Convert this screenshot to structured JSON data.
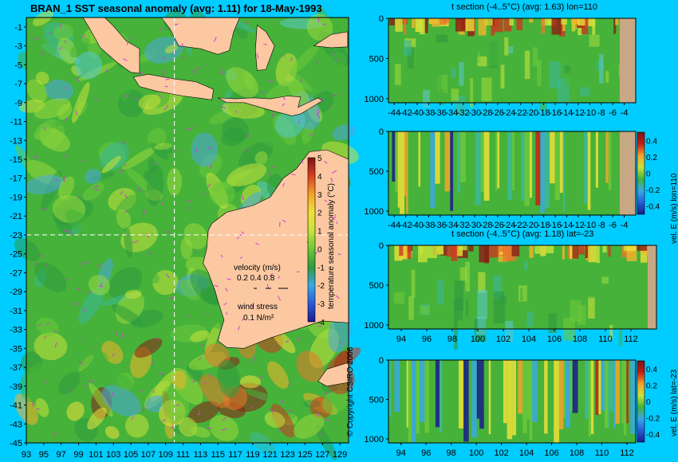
{
  "chart_data": [
    {
      "type": "heatmap",
      "title": "BRAN_1 SST seasonal anomaly (avg: 1.11) for 18-May-1993",
      "x_ticks": [
        "93",
        "95",
        "97",
        "99",
        "101",
        "103",
        "105",
        "107",
        "109",
        "111",
        "113",
        "115",
        "117",
        "119",
        "121",
        "123",
        "125",
        "127",
        "129"
      ],
      "y_ticks": [
        "-1",
        "-3",
        "-5",
        "-7",
        "-9",
        "-11",
        "-13",
        "-15",
        "-17",
        "-19",
        "-21",
        "-23",
        "-25",
        "-27",
        "-29",
        "-31",
        "-33",
        "-35",
        "-37",
        "-39",
        "-41",
        "-43",
        "-45"
      ],
      "xlim": [
        93,
        130
      ],
      "ylim": [
        -45,
        0
      ],
      "crosshair": {
        "lon": 110,
        "lat": -23
      },
      "colorbar": {
        "label": "temperature seasonal anomaly (°C)",
        "ticks": [
          "5",
          "4",
          "3",
          "2",
          "1",
          "0",
          "-1",
          "-2",
          "-3",
          "-4"
        ],
        "range": [
          -4,
          5
        ]
      },
      "legend": {
        "velocity_title": "velocity (m/s)",
        "velocity_values": "0.2 0.4 0.8",
        "wind_title": "wind stress",
        "wind_value": "0.1 N/m²"
      },
      "copyright": "© Copyright CSIRO 2006"
    },
    {
      "type": "heatmap",
      "title": "t section (-4..5°C) (avg: 1.63) lon=110",
      "x_ticks": [
        "-44",
        "-42",
        "-40",
        "-38",
        "-36",
        "-34",
        "-32",
        "-30",
        "-28",
        "-26",
        "-24",
        "-22",
        "-20",
        "-18",
        "-16",
        "-14",
        "-12",
        "-10",
        "-8",
        "-6",
        "-4"
      ],
      "y_ticks": [
        "0",
        "500",
        "1000"
      ]
    },
    {
      "type": "heatmap",
      "title": "",
      "x_ticks": [
        "-44",
        "-42",
        "-40",
        "-38",
        "-36",
        "-34",
        "-32",
        "-30",
        "-28",
        "-26",
        "-24",
        "-22",
        "-20",
        "-18",
        "-16",
        "-14",
        "-12",
        "-10",
        "-8",
        "-6",
        "-4"
      ],
      "y_ticks": [
        "0",
        "500",
        "1000"
      ],
      "colorbar": {
        "label": "vel. E (m/s) lon=110",
        "ticks": [
          "0.4",
          "0.2",
          "0",
          "-0.2",
          "-0.4"
        ]
      }
    },
    {
      "type": "heatmap",
      "title": "t section (-4..5°C) (avg: 1.18) lat=-23",
      "x_ticks": [
        "94",
        "96",
        "98",
        "100",
        "102",
        "104",
        "106",
        "108",
        "110",
        "112"
      ],
      "y_ticks": [
        "0",
        "500",
        "1000"
      ]
    },
    {
      "type": "heatmap",
      "title": "",
      "x_ticks": [
        "94",
        "96",
        "98",
        "100",
        "102",
        "104",
        "106",
        "108",
        "110",
        "112"
      ],
      "y_ticks": [
        "0",
        "500",
        "1000"
      ],
      "colorbar": {
        "label": "vel. E (m/s) lat=-23",
        "ticks": [
          "0.4",
          "0.2",
          "0",
          "-0.2",
          "-0.4"
        ]
      }
    }
  ]
}
